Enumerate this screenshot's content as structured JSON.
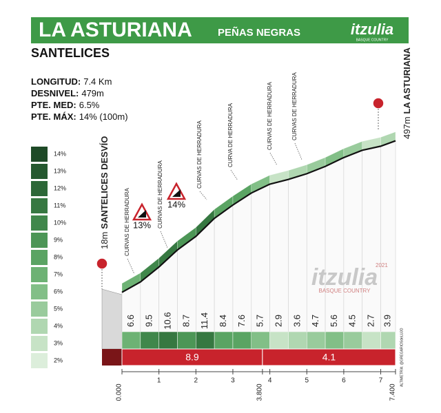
{
  "header": {
    "title": "LA ASTURIANA",
    "subtitle": "PEÑAS NEGRAS",
    "brand": "itzulia",
    "brand_sub": "BASQUE COUNTRY"
  },
  "start_name": "SANTELICES",
  "stats": [
    {
      "label": "LONGITUD:",
      "value": "7.4 Km"
    },
    {
      "label": "DESNIVEL:",
      "value": "479m"
    },
    {
      "label": "PTE. MED:",
      "value": "6.5%"
    },
    {
      "label": "PTE. MÁX:",
      "value": "14% (100m)"
    }
  ],
  "chart_data": {
    "type": "profile",
    "legend": [
      {
        "value": 14,
        "label": "14%",
        "color": "#1e4a27"
      },
      {
        "value": 13,
        "label": "13%",
        "color": "#25592f"
      },
      {
        "value": 12,
        "label": "12%",
        "color": "#2d6838"
      },
      {
        "value": 11,
        "label": "11%",
        "color": "#367841"
      },
      {
        "value": 10,
        "label": "10%",
        "color": "#40874b"
      },
      {
        "value": 9,
        "label": "9%",
        "color": "#4c9656"
      },
      {
        "value": 8,
        "label": "8%",
        "color": "#5aa463"
      },
      {
        "value": 7,
        "label": "7%",
        "color": "#6db274"
      },
      {
        "value": 6,
        "label": "6%",
        "color": "#82bf87"
      },
      {
        "value": 5,
        "label": "5%",
        "color": "#99cb9c"
      },
      {
        "value": 4,
        "label": "4%",
        "color": "#b0d7b1"
      },
      {
        "value": 3,
        "label": "3%",
        "color": "#c7e3c6"
      },
      {
        "value": 2,
        "label": "2%",
        "color": "#dceedb"
      }
    ],
    "x": [
      0,
      0.5,
      1,
      1.5,
      2,
      2.5,
      3,
      3.5,
      4,
      4.5,
      5,
      5.5,
      6,
      6.5,
      7,
      7.4
    ],
    "elevation": [
      18,
      51,
      98,
      152,
      195,
      252,
      294,
      332,
      360,
      375,
      393,
      416,
      444,
      467,
      480,
      497
    ],
    "gradients": [
      6.6,
      9.5,
      10.6,
      8.7,
      11.4,
      8.4,
      7.6,
      5.7,
      2.9,
      3.6,
      4.7,
      5.6,
      4.5,
      2.7,
      3.9
    ],
    "sectors": [
      {
        "start": 0,
        "end": 3.8,
        "gradient": 8.9
      },
      {
        "start": 3.8,
        "end": 7.4,
        "gradient": 4.1
      }
    ],
    "xlim": [
      0,
      7.4
    ],
    "ylim": [
      0,
      520
    ],
    "xticks": [
      {
        "value": 0,
        "label": "0.000"
      },
      1,
      2,
      3,
      {
        "value": 3.8,
        "label": "3.800"
      },
      4,
      5,
      6,
      7,
      {
        "value": 7.4,
        "label": "7.400"
      }
    ],
    "start_label": {
      "elevation": "18m",
      "name": "SANTELICES DESVÍO"
    },
    "end_label": {
      "elevation": "497m",
      "name": "LA ASTURIANA"
    },
    "annotations": [
      "CURVAS DE HERRADURA",
      "CURVAS DE HERRADURA",
      "CURVAS DE HERRADURA",
      "CURVA DE HERRADURA",
      "CURVAS DE HERRADURA",
      "CURVAS DE HERRADURA"
    ],
    "steep_signs": [
      "13%",
      "14%"
    ],
    "watermark_year": "2021",
    "credit": "ALTIMETRÍA: @GREGARIOSdeLUJO"
  }
}
